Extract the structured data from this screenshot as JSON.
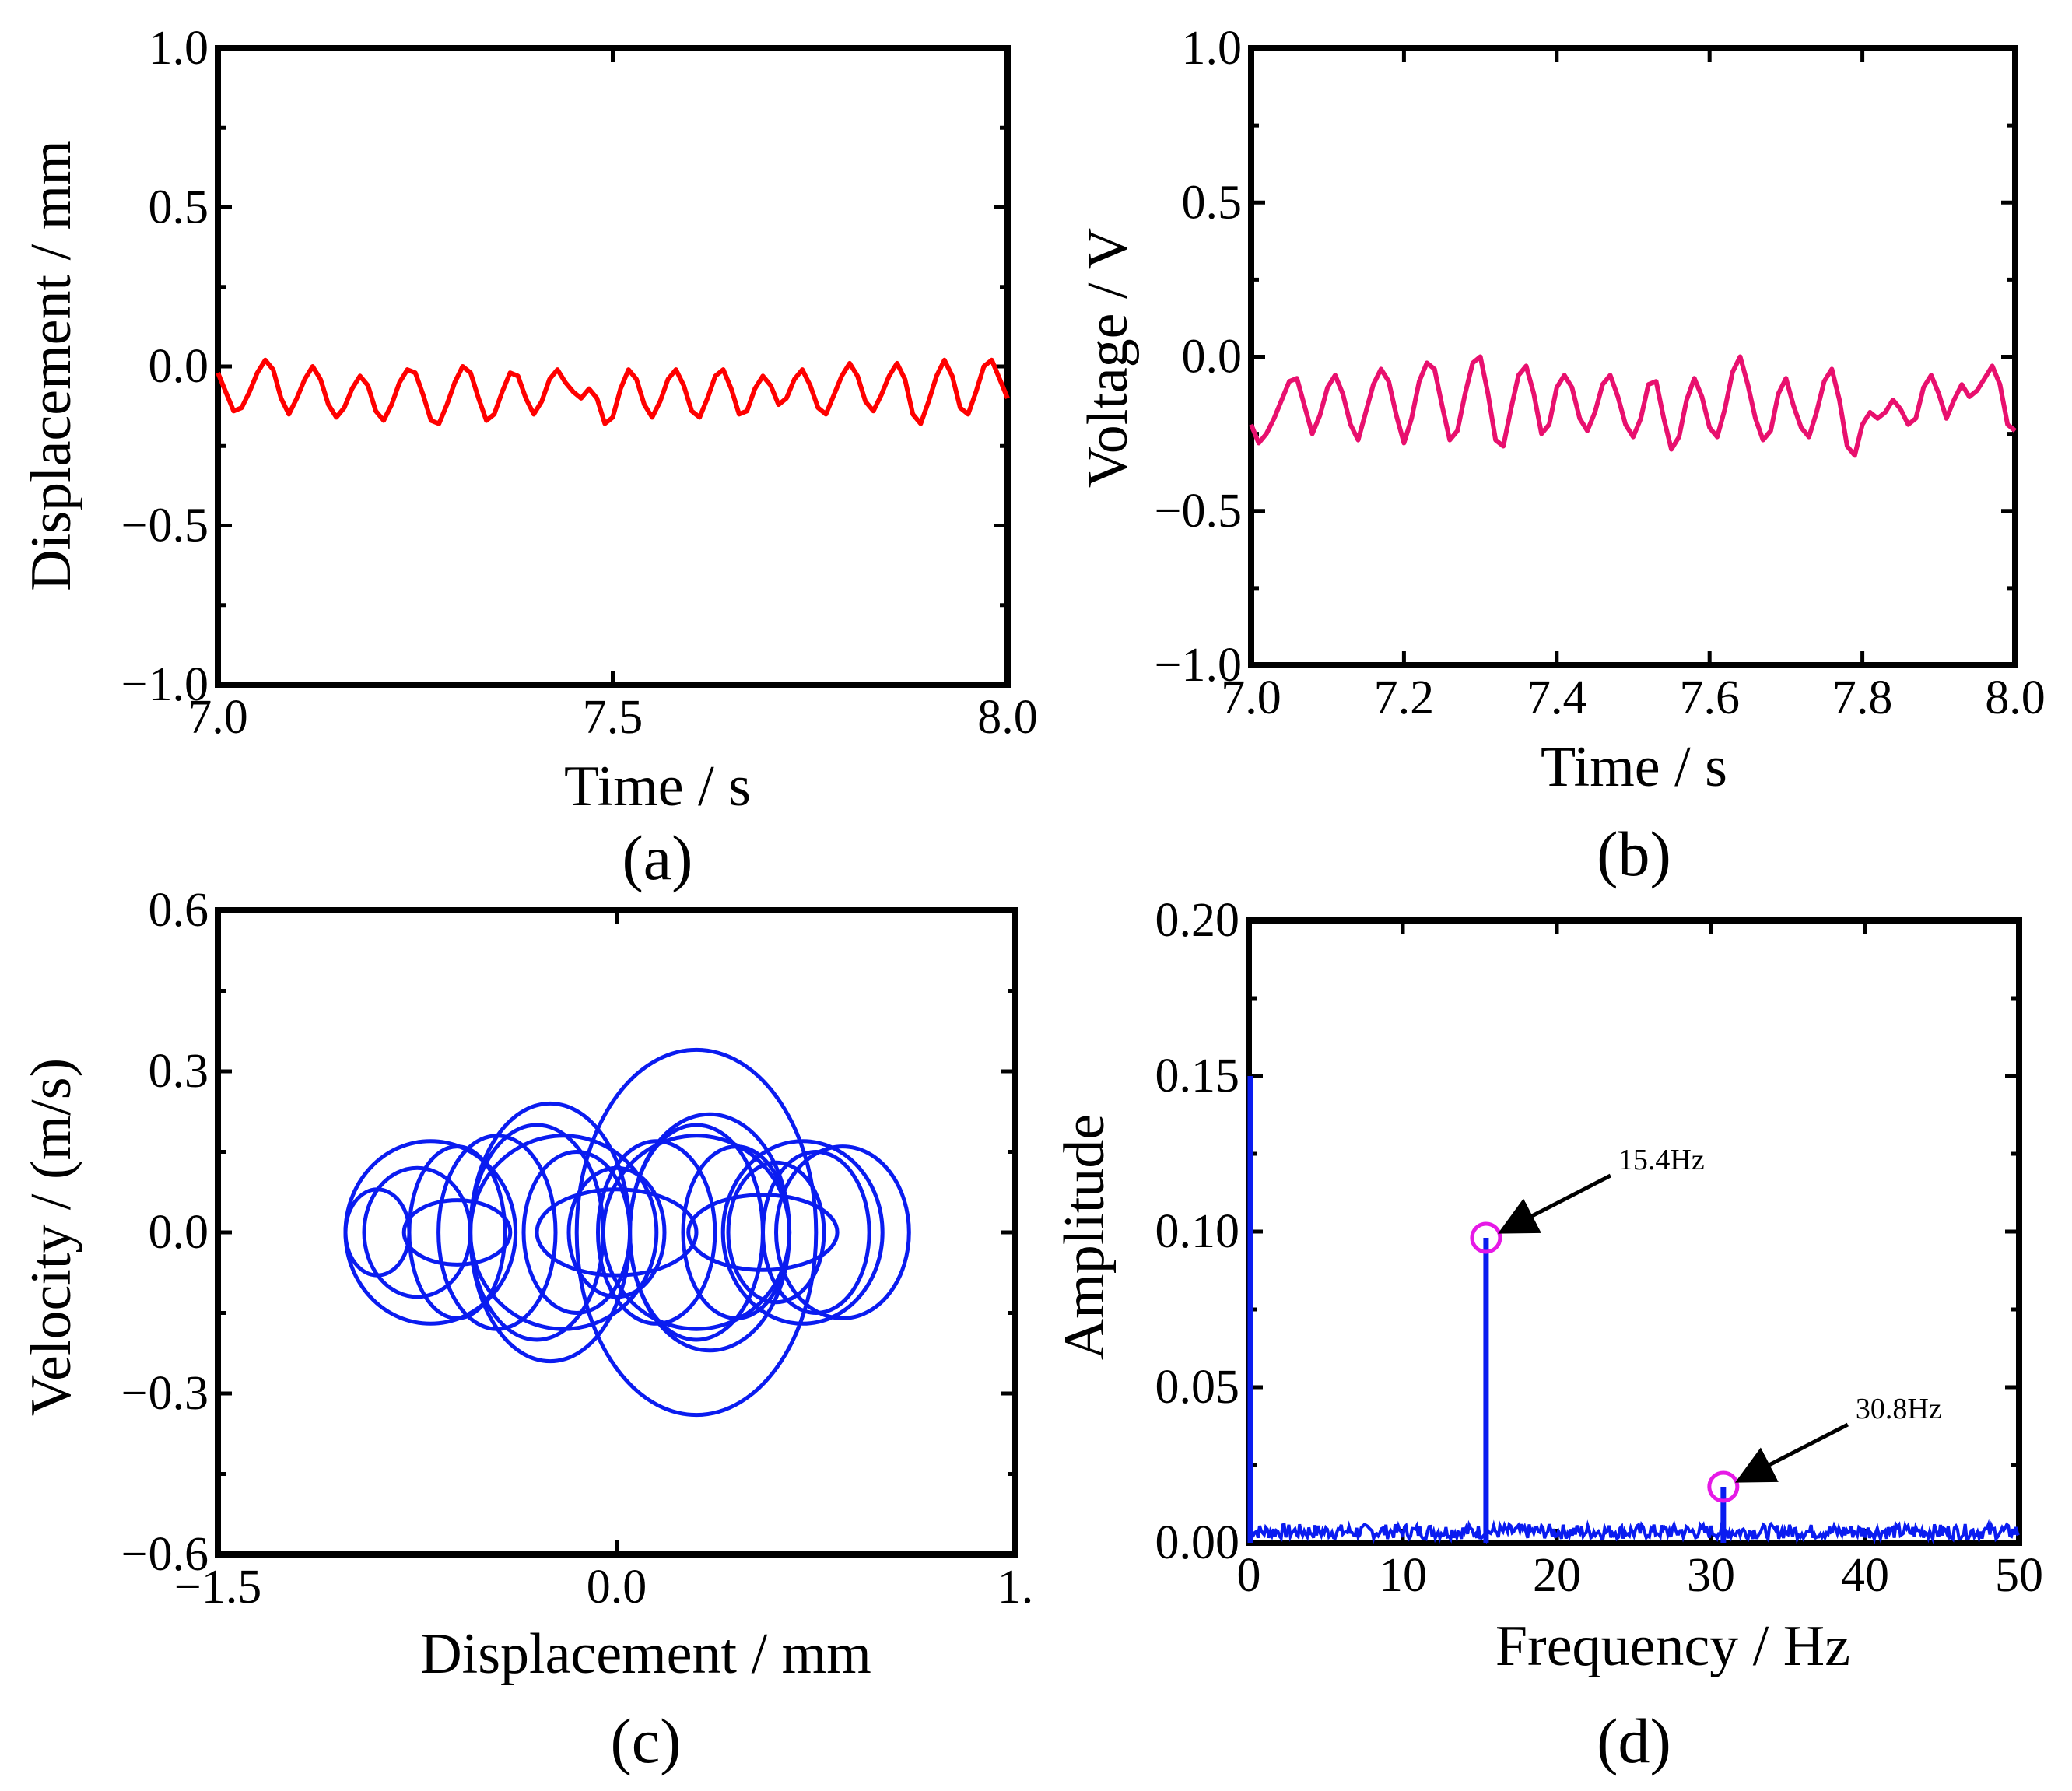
{
  "chart_data": [
    {
      "id": "a",
      "type": "line",
      "panel_label": "(a)",
      "xlabel": "Time / s",
      "ylabel": "Displacement / mm",
      "xlim": [
        7.0,
        8.0
      ],
      "ylim": [
        -1.0,
        1.0
      ],
      "xticks": [
        "7.0",
        "7.5",
        "8.0"
      ],
      "yticks": [
        "1.0",
        "0.5",
        "0.0",
        "−0.5",
        "−1.0"
      ],
      "color": "#ff0000",
      "series": [
        {
          "x": [
            7.0,
            7.01,
            7.02,
            7.03,
            7.04,
            7.05,
            7.06,
            7.07,
            7.08,
            7.09,
            7.1,
            7.11,
            7.12,
            7.13,
            7.14,
            7.15,
            7.16,
            7.17,
            7.18,
            7.19,
            7.2,
            7.21,
            7.22,
            7.23,
            7.24,
            7.25,
            7.26,
            7.27,
            7.28,
            7.29,
            7.3,
            7.31,
            7.32,
            7.33,
            7.34,
            7.35,
            7.36,
            7.37,
            7.38,
            7.39,
            7.4,
            7.41,
            7.42,
            7.43,
            7.44,
            7.45,
            7.46,
            7.47,
            7.48,
            7.49,
            7.5,
            7.51,
            7.52,
            7.53,
            7.54,
            7.55,
            7.56,
            7.57,
            7.58,
            7.59,
            7.6,
            7.61,
            7.62,
            7.63,
            7.64,
            7.65,
            7.66,
            7.67,
            7.68,
            7.69,
            7.7,
            7.71,
            7.72,
            7.73,
            7.74,
            7.75,
            7.76,
            7.77,
            7.78,
            7.79,
            7.8,
            7.81,
            7.82,
            7.83,
            7.84,
            7.85,
            7.86,
            7.87,
            7.88,
            7.89,
            7.9,
            7.91,
            7.92,
            7.93,
            7.94,
            7.95,
            7.96,
            7.97,
            7.98,
            7.99,
            8.0
          ],
          "y": [
            -0.02,
            -0.08,
            -0.14,
            -0.13,
            -0.08,
            -0.02,
            0.02,
            -0.01,
            -0.1,
            -0.15,
            -0.1,
            -0.04,
            0.0,
            -0.04,
            -0.12,
            -0.16,
            -0.13,
            -0.07,
            -0.03,
            -0.06,
            -0.14,
            -0.17,
            -0.12,
            -0.05,
            -0.01,
            -0.02,
            -0.09,
            -0.17,
            -0.18,
            -0.12,
            -0.05,
            0.0,
            -0.02,
            -0.1,
            -0.17,
            -0.15,
            -0.08,
            -0.02,
            -0.03,
            -0.1,
            -0.15,
            -0.11,
            -0.04,
            -0.01,
            -0.05,
            -0.08,
            -0.1,
            -0.07,
            -0.1,
            -0.18,
            -0.16,
            -0.07,
            -0.01,
            -0.04,
            -0.12,
            -0.16,
            -0.11,
            -0.04,
            -0.01,
            -0.06,
            -0.14,
            -0.16,
            -0.1,
            -0.03,
            -0.01,
            -0.07,
            -0.15,
            -0.14,
            -0.07,
            -0.03,
            -0.06,
            -0.12,
            -0.1,
            -0.04,
            -0.01,
            -0.06,
            -0.13,
            -0.15,
            -0.09,
            -0.03,
            0.01,
            -0.03,
            -0.11,
            -0.14,
            -0.09,
            -0.03,
            0.01,
            -0.04,
            -0.15,
            -0.18,
            -0.11,
            -0.03,
            0.02,
            -0.03,
            -0.13,
            -0.15,
            -0.08,
            0.0,
            0.02,
            -0.04,
            -0.1
          ]
        }
      ]
    },
    {
      "id": "b",
      "type": "line",
      "panel_label": "(b)",
      "xlabel": "Time / s",
      "ylabel": "Voltage / V",
      "xlim": [
        7.0,
        8.0
      ],
      "ylim": [
        -1.0,
        1.0
      ],
      "xticks": [
        "7.0",
        "7.2",
        "7.4",
        "7.6",
        "7.8",
        "8.0"
      ],
      "yticks": [
        "1.0",
        "0.5",
        "0.0",
        "−0.5",
        "−1.0"
      ],
      "color": "#e8106e",
      "series": [
        {
          "x": [
            7.0,
            7.01,
            7.02,
            7.03,
            7.04,
            7.05,
            7.06,
            7.07,
            7.08,
            7.09,
            7.1,
            7.11,
            7.12,
            7.13,
            7.14,
            7.15,
            7.16,
            7.17,
            7.18,
            7.19,
            7.2,
            7.21,
            7.22,
            7.23,
            7.24,
            7.25,
            7.26,
            7.27,
            7.28,
            7.29,
            7.3,
            7.31,
            7.32,
            7.33,
            7.34,
            7.35,
            7.36,
            7.37,
            7.38,
            7.39,
            7.4,
            7.41,
            7.42,
            7.43,
            7.44,
            7.45,
            7.46,
            7.47,
            7.48,
            7.49,
            7.5,
            7.51,
            7.52,
            7.53,
            7.54,
            7.55,
            7.56,
            7.57,
            7.58,
            7.59,
            7.6,
            7.61,
            7.62,
            7.63,
            7.64,
            7.65,
            7.66,
            7.67,
            7.68,
            7.69,
            7.7,
            7.71,
            7.72,
            7.73,
            7.74,
            7.75,
            7.76,
            7.77,
            7.78,
            7.79,
            7.8,
            7.81,
            7.82,
            7.83,
            7.84,
            7.85,
            7.86,
            7.87,
            7.88,
            7.89,
            7.9,
            7.91,
            7.92,
            7.93,
            7.94,
            7.95,
            7.96,
            7.97,
            7.98,
            7.99,
            8.0
          ],
          "y": [
            -0.22,
            -0.28,
            -0.25,
            -0.2,
            -0.14,
            -0.08,
            -0.07,
            -0.16,
            -0.25,
            -0.19,
            -0.1,
            -0.06,
            -0.12,
            -0.22,
            -0.27,
            -0.18,
            -0.09,
            -0.04,
            -0.08,
            -0.19,
            -0.28,
            -0.2,
            -0.08,
            -0.02,
            -0.04,
            -0.16,
            -0.27,
            -0.24,
            -0.12,
            -0.02,
            0.0,
            -0.12,
            -0.27,
            -0.29,
            -0.17,
            -0.06,
            -0.03,
            -0.12,
            -0.25,
            -0.22,
            -0.1,
            -0.06,
            -0.1,
            -0.2,
            -0.24,
            -0.18,
            -0.09,
            -0.06,
            -0.13,
            -0.22,
            -0.26,
            -0.2,
            -0.09,
            -0.08,
            -0.2,
            -0.3,
            -0.26,
            -0.14,
            -0.07,
            -0.13,
            -0.23,
            -0.26,
            -0.17,
            -0.05,
            0.0,
            -0.09,
            -0.2,
            -0.27,
            -0.24,
            -0.12,
            -0.07,
            -0.16,
            -0.23,
            -0.26,
            -0.18,
            -0.08,
            -0.04,
            -0.14,
            -0.29,
            -0.32,
            -0.22,
            -0.18,
            -0.2,
            -0.18,
            -0.14,
            -0.17,
            -0.22,
            -0.2,
            -0.1,
            -0.06,
            -0.12,
            -0.2,
            -0.14,
            -0.09,
            -0.13,
            -0.11,
            -0.07,
            -0.03,
            -0.09,
            -0.22,
            -0.24
          ]
        }
      ]
    },
    {
      "id": "c",
      "type": "line",
      "panel_label": "(c)",
      "xlabel": "Displacement / mm",
      "ylabel": "Velocity / (m/s)",
      "xlim": [
        -1.5,
        1.5
      ],
      "ylim": [
        -0.6,
        0.6
      ],
      "xticks": [
        "−1.5",
        "0.0",
        "1."
      ],
      "yticks": [
        "0.6",
        "0.3",
        "0.0",
        "−0.3",
        "−0.6"
      ],
      "color": "#0a1cf0",
      "orbits": [
        {
          "cx": -0.9,
          "rx": 0.12,
          "ry": 0.08
        },
        {
          "cx": -0.75,
          "rx": 0.2,
          "ry": 0.12
        },
        {
          "cx": -0.6,
          "rx": 0.18,
          "ry": 0.16
        },
        {
          "cx": -0.45,
          "rx": 0.22,
          "ry": 0.18
        },
        {
          "cx": -0.3,
          "rx": 0.25,
          "ry": 0.2
        },
        {
          "cx": -0.15,
          "rx": 0.2,
          "ry": 0.15
        },
        {
          "cx": 0.0,
          "rx": 0.18,
          "ry": 0.12
        },
        {
          "cx": 0.15,
          "rx": 0.22,
          "ry": 0.17
        },
        {
          "cx": 0.3,
          "rx": 0.25,
          "ry": 0.2
        },
        {
          "cx": 0.45,
          "rx": 0.2,
          "ry": 0.16
        },
        {
          "cx": 0.6,
          "rx": 0.18,
          "ry": 0.13
        },
        {
          "cx": 0.75,
          "rx": 0.2,
          "ry": 0.15
        },
        {
          "cx": 0.85,
          "rx": 0.25,
          "ry": 0.16
        },
        {
          "cx": -0.7,
          "rx": 0.32,
          "ry": 0.17
        },
        {
          "cx": -0.2,
          "rx": 0.35,
          "ry": 0.18
        },
        {
          "cx": 0.3,
          "rx": 0.35,
          "ry": 0.18
        },
        {
          "cx": 0.7,
          "rx": 0.3,
          "ry": 0.17
        },
        {
          "cx": -0.6,
          "rx": 0.2,
          "ry": 0.06
        },
        {
          "cx": 0.0,
          "rx": 0.3,
          "ry": 0.08
        },
        {
          "cx": 0.55,
          "rx": 0.28,
          "ry": 0.07
        },
        {
          "cx": -0.25,
          "rx": 0.3,
          "ry": 0.24
        },
        {
          "cx": 0.35,
          "rx": 0.3,
          "ry": 0.22
        },
        {
          "cx": 0.3,
          "rx": 0.45,
          "ry": 0.34
        }
      ]
    },
    {
      "id": "d",
      "type": "line",
      "panel_label": "(d)",
      "xlabel": "Frequency / Hz",
      "ylabel": "Amplitude",
      "xlim": [
        0,
        50
      ],
      "ylim": [
        0,
        0.2
      ],
      "xticks": [
        "0",
        "10",
        "20",
        "30",
        "40",
        "50"
      ],
      "yticks": [
        "0.20",
        "0.15",
        "0.10",
        "0.05",
        "0.00"
      ],
      "color": "#0a1cf0",
      "marker_color": "#e619e6",
      "peaks": [
        {
          "freq": 0.1,
          "amp": 0.15
        },
        {
          "freq": 15.4,
          "amp": 0.098
        },
        {
          "freq": 30.8,
          "amp": 0.018
        }
      ],
      "noise_level": 0.004,
      "annotations": [
        {
          "label": "15.4Hz",
          "freq": 15.4,
          "amp": 0.098
        },
        {
          "label": "30.8Hz",
          "freq": 30.8,
          "amp": 0.018
        }
      ]
    }
  ]
}
